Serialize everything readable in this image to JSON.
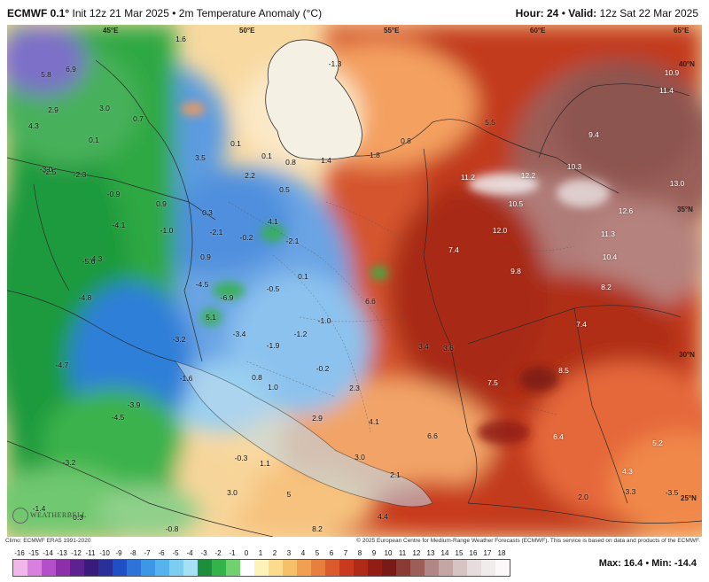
{
  "header": {
    "model": "ECMWF 0.1°",
    "init": "Init 12z 21 Mar 2025",
    "separator": "•",
    "product": "2m Temperature Anomaly (°C)",
    "hour_label": "Hour:",
    "hour_value": "24",
    "valid_label": "Valid:",
    "valid_value": "12z Sat 22 Mar 2025"
  },
  "map": {
    "coordinates": [
      {
        "text": "45°E"
      },
      {
        "text": "50°E"
      },
      {
        "text": "55°E"
      },
      {
        "text": "60°E"
      },
      {
        "text": "65°E"
      },
      {
        "text": "40°N"
      },
      {
        "text": "35°N"
      },
      {
        "text": "30°N"
      },
      {
        "text": "25°N"
      }
    ],
    "values": [
      "5.8",
      "6.9",
      "2.9",
      "1.6",
      "-1.3",
      "10.9",
      "11.4",
      "4.3",
      "3.0",
      "0.7",
      "0.1",
      "0.1",
      "5.5",
      "9.4",
      "0.8",
      "3.5",
      "0.1",
      "0.8",
      "1.4",
      "1.8",
      "10.3",
      "-3.0",
      "-2.5",
      "-2.3",
      "2.2",
      "0.5",
      "11.2",
      "12.2",
      "13.0",
      "-0.9",
      "0.9",
      "0.3",
      "4.1",
      "10.5",
      "12.6",
      "-4.1",
      "-1.0",
      "-2.1",
      "-0.2",
      "-2.1",
      "12.0",
      "11.3",
      "-4.3",
      "7.4",
      "10.4",
      "-5.6",
      "0.9",
      "0.1",
      "9.8",
      "8.2",
      "-4.5",
      "-6.9",
      "-0.5",
      "6.6",
      "-4.8",
      "5.1",
      "-1.0",
      "7.4",
      "-3.2",
      "-3.4",
      "-1.9",
      "-1.2",
      "3.4",
      "3.6",
      "-4.7",
      "-0.2",
      "8.5",
      "-1.6",
      "0.8",
      "1.0",
      "2.3",
      "7.5",
      "-3.9",
      "-4.5",
      "2.9",
      "4.1",
      "6.4",
      "5.2",
      "-0.3",
      "1.1",
      "3.0",
      "6.6",
      "-3.2",
      "2.1",
      "4.3",
      "3.0",
      "5",
      "-3.3",
      "-3.5",
      "-1.4",
      "0.3",
      "4.4",
      "-0.8",
      "8.2",
      "2.0"
    ],
    "watermark": "WEATHERBELL"
  },
  "footer": {
    "climo": "Climo: ECMWF ERA5 1991-2020",
    "copyright": "© 2025 European Centre for Medium-Range Weather Forecasts (ECMWF). This service is based on data and products of the ECMWF.",
    "scale_labels": [
      "-16",
      "-15",
      "-14",
      "-13",
      "-12",
      "-11",
      "-10",
      "-9",
      "-8",
      "-7",
      "-6",
      "-5",
      "-4",
      "-3",
      "-2",
      "-1",
      "0",
      "1",
      "2",
      "3",
      "4",
      "5",
      "6",
      "7",
      "8",
      "9",
      "10",
      "11",
      "12",
      "13",
      "14",
      "15",
      "16",
      "17",
      "18"
    ],
    "scale_colors": [
      "#f3b6ea",
      "#d97fe0",
      "#b44fcb",
      "#8c2fa8",
      "#5e2290",
      "#3a1a7a",
      "#2a2f9a",
      "#1f4fc4",
      "#2e74d8",
      "#3d96e6",
      "#56b3ee",
      "#7ccdf2",
      "#a6e0f5",
      "#1d8f3a",
      "#34b34a",
      "#70d16e",
      "#ffffff",
      "#fff2b8",
      "#fbdc8c",
      "#f6c06a",
      "#f0a050",
      "#e87f3e",
      "#dc5b2c",
      "#c93a1e",
      "#b02a18",
      "#921d14",
      "#7a1a16",
      "#8a3b33",
      "#9c5e57",
      "#b08784",
      "#c4a7a4",
      "#d6c4c2",
      "#e6dcdb",
      "#f1ecec",
      "#faf8f8"
    ],
    "max_label": "Max:",
    "max_value": "16.4",
    "min_label": "Min:",
    "min_value": "-14.4"
  }
}
